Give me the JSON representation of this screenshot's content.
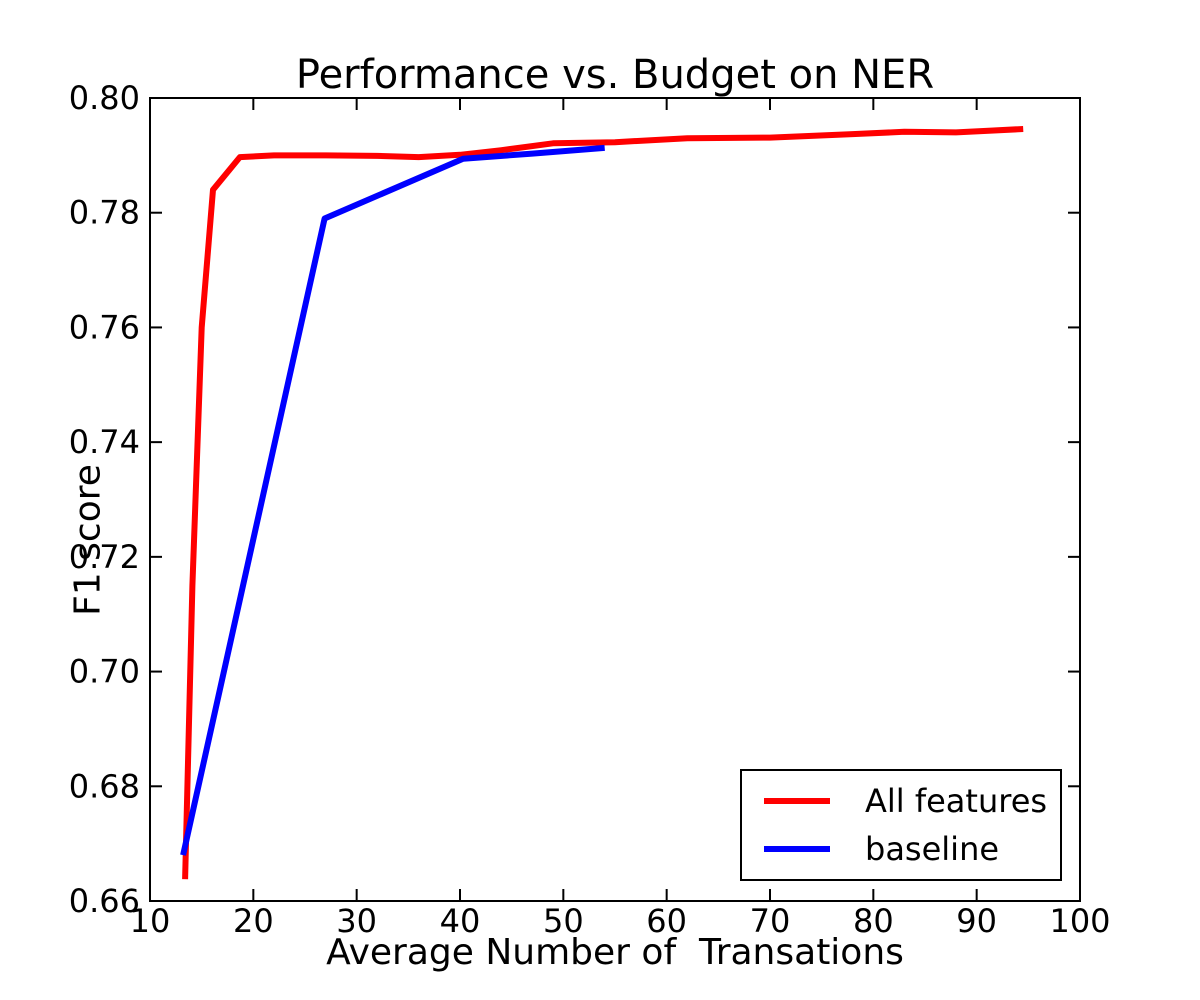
{
  "chart_data": {
    "type": "line",
    "title": "Performance vs. Budget on NER",
    "xlabel": "Average Number of  Transations",
    "ylabel": "F1 score",
    "xlim": [
      10,
      100
    ],
    "ylim": [
      0.66,
      0.8
    ],
    "xticks": [
      10,
      20,
      30,
      40,
      50,
      60,
      70,
      80,
      90,
      100
    ],
    "yticks": [
      0.66,
      0.68,
      0.7,
      0.72,
      0.74,
      0.76,
      0.78,
      0.8
    ],
    "grid": false,
    "legend_position": "lower right",
    "axis_color": "#000000",
    "background_color": "#ffffff",
    "series": [
      {
        "name": "All features",
        "color": "#ff0000",
        "points": [
          [
            13.4,
            0.6638
          ],
          [
            14.1,
            0.715
          ],
          [
            15.0,
            0.76
          ],
          [
            16.1,
            0.784
          ],
          [
            18.7,
            0.7897
          ],
          [
            22.0,
            0.79
          ],
          [
            27.0,
            0.79
          ],
          [
            32.0,
            0.7899
          ],
          [
            36.0,
            0.7897
          ],
          [
            40.0,
            0.7901
          ],
          [
            44.0,
            0.7909
          ],
          [
            49.0,
            0.7921
          ],
          [
            55.0,
            0.7923
          ],
          [
            62.0,
            0.793
          ],
          [
            70.0,
            0.7931
          ],
          [
            78.0,
            0.7937
          ],
          [
            83.0,
            0.7941
          ],
          [
            88.0,
            0.794
          ],
          [
            94.5,
            0.7946
          ]
        ]
      },
      {
        "name": "baseline",
        "color": "#0000ff",
        "points": [
          [
            13.2,
            0.668
          ],
          [
            26.9,
            0.779
          ],
          [
            40.3,
            0.7894
          ],
          [
            47.0,
            0.7903
          ],
          [
            54.0,
            0.7913
          ]
        ]
      }
    ],
    "legend": [
      {
        "label": "All features"
      },
      {
        "label": "baseline"
      }
    ]
  }
}
